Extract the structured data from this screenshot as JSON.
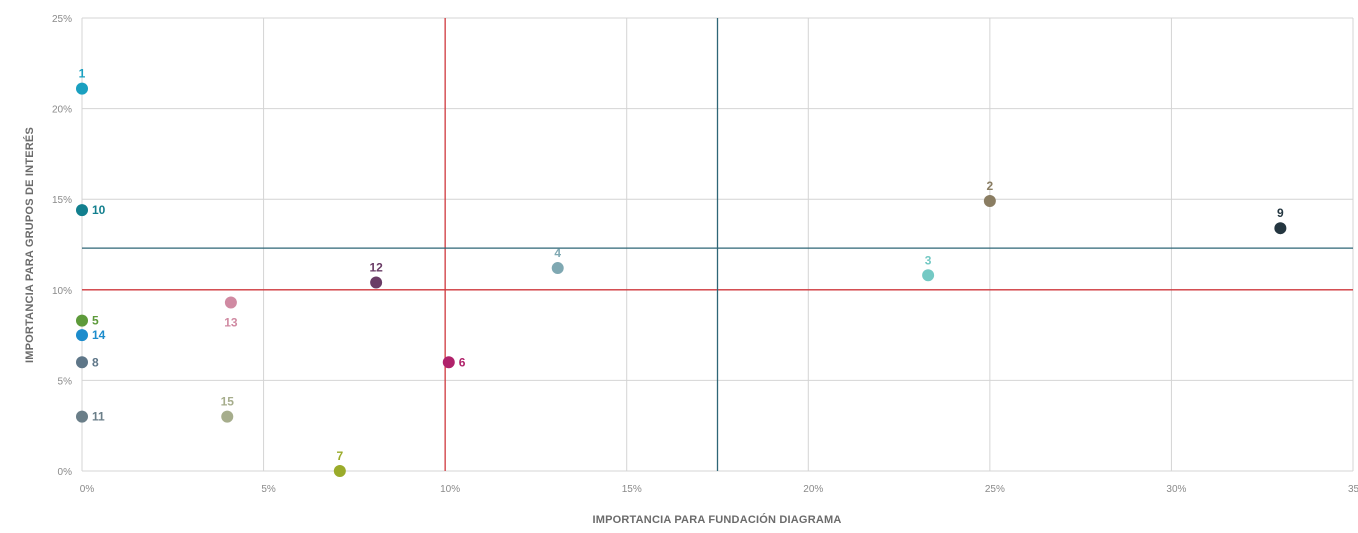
{
  "chart_data": {
    "type": "scatter",
    "title": "",
    "xlabel": "IMPORTANCIA PARA FUNDACIÓN DIAGRAMA",
    "ylabel": "IMPORTANCIA PARA GRUPOS DE INTERÉS",
    "xlim": [
      0,
      35
    ],
    "ylim": [
      0,
      25
    ],
    "x_ticks": [
      0,
      5,
      10,
      15,
      20,
      25,
      30,
      35
    ],
    "y_ticks": [
      0,
      5,
      10,
      15,
      20,
      25
    ],
    "x_tick_labels": [
      "0%",
      "5%",
      "10%",
      "15%",
      "20%",
      "25%",
      "30%",
      "35%"
    ],
    "y_tick_labels": [
      "0%",
      "5%",
      "10%",
      "15%",
      "20%",
      "25%"
    ],
    "grid": true,
    "reference_lines": [
      {
        "orientation": "vertical",
        "value": 10,
        "color": "#d0393e"
      },
      {
        "orientation": "horizontal",
        "value": 10,
        "color": "#d0393e"
      },
      {
        "orientation": "vertical",
        "value": 17.5,
        "color": "#2e6677"
      },
      {
        "orientation": "horizontal",
        "value": 12.3,
        "color": "#2e6677"
      }
    ],
    "points": [
      {
        "label": "1",
        "x": 0,
        "y": 21.1,
        "color": "#1aa0c0",
        "label_pos": "above"
      },
      {
        "label": "2",
        "x": 25,
        "y": 14.9,
        "color": "#8a7d62",
        "label_pos": "above"
      },
      {
        "label": "3",
        "x": 23.3,
        "y": 10.8,
        "color": "#74c9c4",
        "label_pos": "above"
      },
      {
        "label": "4",
        "x": 13.1,
        "y": 11.2,
        "color": "#7fa8b2",
        "label_pos": "above"
      },
      {
        "label": "5",
        "x": 0,
        "y": 8.3,
        "color": "#5d9a3a",
        "label_pos": "right"
      },
      {
        "label": "6",
        "x": 10.1,
        "y": 6.0,
        "color": "#b0226a",
        "label_pos": "right"
      },
      {
        "label": "7",
        "x": 7.1,
        "y": 0,
        "color": "#9aab2a",
        "label_pos": "above"
      },
      {
        "label": "8",
        "x": 0,
        "y": 6.0,
        "color": "#5e7688",
        "label_pos": "right"
      },
      {
        "label": "9",
        "x": 33,
        "y": 13.4,
        "color": "#243640",
        "label_pos": "above"
      },
      {
        "label": "10",
        "x": 0,
        "y": 14.4,
        "color": "#127f8e",
        "label_pos": "right"
      },
      {
        "label": "11",
        "x": 0,
        "y": 3.0,
        "color": "#6a7e88",
        "label_pos": "right"
      },
      {
        "label": "12",
        "x": 8.1,
        "y": 10.4,
        "color": "#6a3c66",
        "label_pos": "above"
      },
      {
        "label": "13",
        "x": 4.1,
        "y": 9.3,
        "color": "#d08aa2",
        "label_pos": "below"
      },
      {
        "label": "14",
        "x": 0,
        "y": 7.5,
        "color": "#1c8ccc",
        "label_pos": "right"
      },
      {
        "label": "15",
        "x": 4,
        "y": 3.0,
        "color": "#a6ad8c",
        "label_pos": "above"
      }
    ]
  }
}
